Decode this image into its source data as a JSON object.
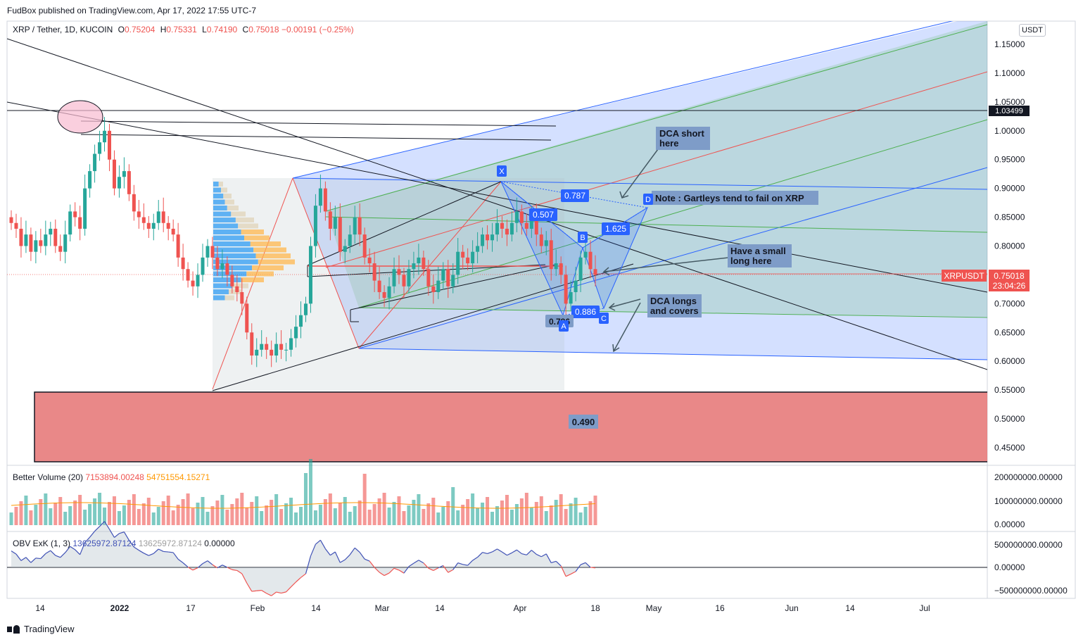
{
  "header": {
    "published_by": "FudBox published on TradingView.com, Apr 17, 2022 17:55 UTC-7",
    "footer_brand": "TradingView"
  },
  "symbol": {
    "title": "XRP / Tether, 1D, KUCOIN",
    "open_label": "O",
    "open": "0.75204",
    "high_label": "H",
    "high": "0.75331",
    "low_label": "L",
    "low": "0.74190",
    "close_label": "C",
    "close": "0.75018",
    "change": "−0.00191 (−0.25%)",
    "currency": "USDT"
  },
  "price_scale": {
    "ticks": [
      "1.15000",
      "1.10000",
      "1.05000",
      "1.00000",
      "0.95000",
      "0.90000",
      "0.85000",
      "0.80000",
      "0.75000",
      "0.70000",
      "0.65000",
      "0.60000",
      "0.55000",
      "0.50000",
      "0.45000"
    ],
    "tick_values": [
      1.15,
      1.1,
      1.05,
      1.0,
      0.95,
      0.9,
      0.85,
      0.8,
      0.75,
      0.7,
      0.65,
      0.6,
      0.55,
      0.5,
      0.45
    ],
    "horizontal_level": "1.03499",
    "last_price_symbol": "XRPUSDT",
    "last_price": "0.75018",
    "countdown": "23:04:26"
  },
  "time_axis": {
    "labels": [
      "14",
      "2022",
      "17",
      "Feb",
      "14",
      "Mar",
      "14",
      "Apr",
      "18",
      "May",
      "16",
      "Jun",
      "14",
      "Jul"
    ],
    "bold": [
      false,
      true,
      false,
      false,
      false,
      false,
      false,
      false,
      false,
      false,
      false,
      false,
      false,
      false
    ]
  },
  "annotations": {
    "dca_short": "DCA short\nhere",
    "gartley_note": "Note : Gartleys tend to fail on XRP",
    "small_long": "Have a small\nlong here",
    "dca_longs": "DCA longs\nand covers",
    "support_zone": "0.490",
    "pattern_points": [
      "X",
      "A",
      "B",
      "C",
      "D"
    ],
    "pattern_ratios": [
      "0.787",
      "0.507",
      "1.625",
      "0.886",
      "0.786"
    ]
  },
  "volume_pane": {
    "title": "Better Volume (20)",
    "v1": "7153894.00248",
    "v2": "54751554.15271",
    "scale": [
      "200000000.00000",
      "100000000.00000",
      "0.00000"
    ]
  },
  "obv_pane": {
    "title": "OBV ExK (1, 3)",
    "v1": "13625972.87124",
    "v2": "13625972.87124",
    "v3": "0.00000",
    "scale": [
      "500000000.00000",
      "0.00000",
      "−500000000.00000"
    ]
  },
  "colors": {
    "up": "#26a69a",
    "down": "#ef5350",
    "pitchfork_blue": "#2962ff",
    "pitchfork_green": "#4caf50",
    "support_zone": "#e57373",
    "label_bg": "#7e9cc8",
    "pattern_label": "#2962ff"
  },
  "chart_data": {
    "type": "candlestick",
    "title": "XRP / Tether, 1D, KUCOIN",
    "ylim": [
      0.43,
      1.18
    ],
    "x_range": [
      "2021-12-04",
      "2022-07-19"
    ],
    "daily_close_approx": [
      0.84,
      0.83,
      0.8,
      0.82,
      0.79,
      0.81,
      0.8,
      0.82,
      0.83,
      0.8,
      0.79,
      0.82,
      0.86,
      0.85,
      0.83,
      0.9,
      0.93,
      0.96,
      0.98,
      1.0,
      0.95,
      0.9,
      0.92,
      0.93,
      0.89,
      0.86,
      0.85,
      0.84,
      0.83,
      0.84,
      0.86,
      0.84,
      0.83,
      0.82,
      0.78,
      0.76,
      0.74,
      0.73,
      0.75,
      0.78,
      0.8,
      0.78,
      0.76,
      0.77,
      0.75,
      0.73,
      0.72,
      0.7,
      0.65,
      0.61,
      0.62,
      0.63,
      0.62,
      0.61,
      0.63,
      0.62,
      0.62,
      0.64,
      0.66,
      0.68,
      0.7,
      0.8,
      0.87,
      0.9,
      0.86,
      0.83,
      0.85,
      0.79,
      0.8,
      0.82,
      0.85,
      0.82,
      0.78,
      0.77,
      0.74,
      0.72,
      0.71,
      0.73,
      0.76,
      0.75,
      0.73,
      0.76,
      0.77,
      0.78,
      0.76,
      0.73,
      0.72,
      0.74,
      0.76,
      0.73,
      0.75,
      0.79,
      0.78,
      0.77,
      0.79,
      0.8,
      0.82,
      0.81,
      0.82,
      0.84,
      0.83,
      0.82,
      0.84,
      0.86,
      0.84,
      0.83,
      0.85,
      0.82,
      0.8,
      0.81,
      0.76,
      0.77,
      0.75,
      0.7,
      0.72,
      0.74,
      0.78,
      0.79,
      0.76,
      0.75
    ],
    "horizontal_level": 1.03499,
    "support_zone": [
      0.43,
      0.55
    ]
  }
}
